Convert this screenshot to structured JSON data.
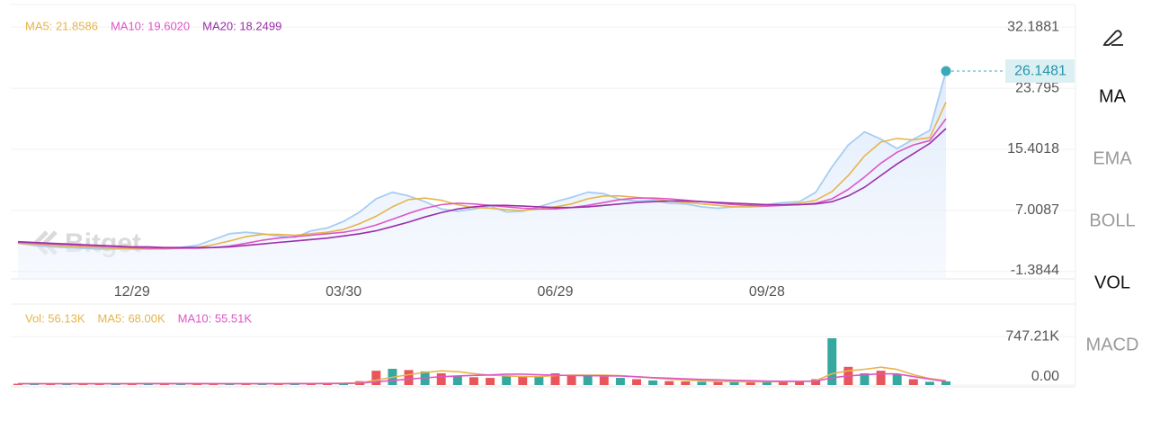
{
  "chart_data": [
    {
      "type": "line",
      "categories": [
        null,
        null,
        null,
        null,
        null,
        null,
        null,
        "12/29",
        null,
        null,
        null,
        null,
        null,
        null,
        null,
        null,
        null,
        null,
        null,
        null,
        "03/30",
        null,
        null,
        null,
        null,
        null,
        null,
        null,
        null,
        null,
        null,
        null,
        null,
        "06/29",
        null,
        null,
        null,
        null,
        null,
        null,
        null,
        null,
        null,
        null,
        null,
        null,
        "09/28",
        null,
        null,
        null,
        null,
        null,
        null,
        null,
        null,
        null,
        null,
        null
      ],
      "ylim": [
        -2.4,
        35.3
      ],
      "yticks": [
        32.1881,
        23.795,
        15.4018,
        7.0087,
        -1.3844
      ],
      "grid": true,
      "series": [
        {
          "color": "#a8cdf2",
          "area": true,
          "last_marker": true,
          "values": [
            2.5,
            2.2,
            2.0,
            1.9,
            1.8,
            1.7,
            1.7,
            1.8,
            1.7,
            1.8,
            1.9,
            2.2,
            3.0,
            3.8,
            4.0,
            3.8,
            3.5,
            3.3,
            4.2,
            4.6,
            5.5,
            6.8,
            8.6,
            9.5,
            9.0,
            8.2,
            7.2,
            6.9,
            7.2,
            7.6,
            6.8,
            6.9,
            7.5,
            8.2,
            8.8,
            9.5,
            9.3,
            8.5,
            8.3,
            8.4,
            8.0,
            7.9,
            7.5,
            7.3,
            7.5,
            7.6,
            7.8,
            8.1,
            8.2,
            9.5,
            13.0,
            16.0,
            17.8,
            16.8,
            15.5,
            16.8,
            18.0,
            26.1481
          ]
        },
        {
          "name": "MA5: 21.8586",
          "color": "#e6b54a",
          "values": [
            2.5,
            2.4,
            2.2,
            2.1,
            2.0,
            1.9,
            1.8,
            1.7,
            1.7,
            1.7,
            1.8,
            1.9,
            2.3,
            2.8,
            3.4,
            3.7,
            3.7,
            3.6,
            3.8,
            4.0,
            4.4,
            5.2,
            6.2,
            7.5,
            8.5,
            8.7,
            8.4,
            7.8,
            7.4,
            7.3,
            7.1,
            7.0,
            7.2,
            7.5,
            7.9,
            8.6,
            9.0,
            9.0,
            8.8,
            8.6,
            8.3,
            8.1,
            7.9,
            7.7,
            7.5,
            7.5,
            7.6,
            7.8,
            8.0,
            8.4,
            9.6,
            11.8,
            14.5,
            16.4,
            16.9,
            16.7,
            17.0,
            21.8586
          ]
        },
        {
          "name": "MA10: 19.6020",
          "color": "#df55c6",
          "values": [
            2.6,
            2.5,
            2.4,
            2.3,
            2.2,
            2.1,
            2.0,
            1.9,
            1.8,
            1.8,
            1.8,
            1.8,
            1.9,
            2.1,
            2.5,
            2.9,
            3.2,
            3.4,
            3.6,
            3.8,
            4.0,
            4.4,
            5.0,
            5.8,
            6.6,
            7.3,
            7.8,
            8.0,
            7.9,
            7.7,
            7.5,
            7.3,
            7.2,
            7.2,
            7.4,
            7.7,
            8.1,
            8.5,
            8.7,
            8.7,
            8.6,
            8.4,
            8.2,
            8.0,
            7.8,
            7.7,
            7.6,
            7.7,
            7.8,
            8.0,
            8.6,
            9.9,
            11.6,
            13.5,
            15.0,
            16.0,
            16.6,
            19.602
          ]
        },
        {
          "name": "MA20: 18.2499",
          "color": "#9a2fa8",
          "values": [
            2.7,
            2.6,
            2.5,
            2.4,
            2.3,
            2.2,
            2.1,
            2.0,
            2.0,
            1.9,
            1.9,
            1.9,
            1.9,
            2.0,
            2.2,
            2.4,
            2.6,
            2.8,
            3.0,
            3.2,
            3.5,
            3.8,
            4.2,
            4.8,
            5.4,
            6.1,
            6.7,
            7.2,
            7.5,
            7.7,
            7.7,
            7.6,
            7.5,
            7.4,
            7.4,
            7.5,
            7.7,
            7.9,
            8.1,
            8.2,
            8.3,
            8.3,
            8.2,
            8.1,
            8.0,
            7.9,
            7.8,
            7.8,
            7.8,
            7.9,
            8.2,
            9.0,
            10.2,
            11.8,
            13.4,
            14.8,
            16.2,
            18.2499
          ]
        }
      ]
    },
    {
      "type": "bar",
      "ylim": [
        0,
        1150000
      ],
      "yticks": [
        {
          "value": 747210,
          "label": "747.21K"
        },
        {
          "value": 0,
          "label": "0.00"
        }
      ],
      "grid": true,
      "series": [
        {
          "name": "Vol: 56.13K",
          "color": "#e6b54a",
          "colors": [
            "#e8555b",
            "#35a89f",
            "#e8555b",
            "#35a89f",
            "#e8555b",
            "#e8555b",
            "#35a89f",
            "#e8555b",
            "#35a89f",
            "#e8555b",
            "#35a89f",
            "#e8555b",
            "#e8555b",
            "#35a89f",
            "#e8555b",
            "#35a89f",
            "#e8555b",
            "#35a89f",
            "#e8555b",
            "#e8555b",
            "#35a89f",
            "#e8555b",
            "#e8555b",
            "#35a89f",
            "#e8555b",
            "#35a89f",
            "#e8555b",
            "#35a89f",
            "#e8555b",
            "#e8555b",
            "#35a89f",
            "#e8555b",
            "#35a89f",
            "#e8555b",
            "#e8555b",
            "#35a89f",
            "#e8555b",
            "#35a89f",
            "#e8555b",
            "#35a89f",
            "#e8555b",
            "#e8555b",
            "#35a89f",
            "#e8555b",
            "#35a89f",
            "#e8555b",
            "#35a89f",
            "#e8555b",
            "#e8555b",
            "#e8555b",
            "#35a89f",
            "#e8555b",
            "#35a89f",
            "#e8555b",
            "#35a89f",
            "#e8555b",
            "#35a89f",
            "#35a89f"
          ],
          "values": [
            20000,
            22000,
            21000,
            20000,
            23000,
            22000,
            21000,
            24000,
            25000,
            22000,
            20000,
            19000,
            21000,
            23000,
            22000,
            20000,
            19000,
            28000,
            30000,
            27000,
            35000,
            60000,
            220000,
            250000,
            230000,
            210000,
            180000,
            140000,
            120000,
            110000,
            150000,
            130000,
            140000,
            180000,
            160000,
            150000,
            130000,
            110000,
            90000,
            70000,
            60000,
            55000,
            50000,
            48000,
            45000,
            50000,
            55000,
            60000,
            65000,
            90000,
            720000,
            280000,
            180000,
            220000,
            160000,
            90000,
            50000,
            56130
          ]
        },
        {
          "name": "MA5: 68.00K",
          "type": "line",
          "color": "#e6b54a",
          "values": [
            21000,
            21000,
            21000,
            21000,
            21000,
            21000,
            21000,
            22000,
            23000,
            23000,
            22000,
            22000,
            21000,
            21000,
            21000,
            21000,
            21000,
            23000,
            24000,
            25000,
            28000,
            36000,
            74000,
            119000,
            159000,
            194000,
            218000,
            206000,
            176000,
            152000,
            142000,
            130000,
            130000,
            146000,
            152000,
            152000,
            152000,
            146000,
            128000,
            110000,
            92000,
            77000,
            65000,
            55000,
            52000,
            50000,
            51000,
            53000,
            55000,
            64000,
            174000,
            219000,
            243000,
            274000,
            240000,
            160000,
            100000,
            68000
          ]
        },
        {
          "name": "MA10: 55.51K",
          "type": "line",
          "color": "#df55c6",
          "values": [
            21000,
            21000,
            21000,
            21000,
            21000,
            21000,
            21000,
            21000,
            22000,
            22000,
            22000,
            22000,
            22000,
            22000,
            22000,
            22000,
            21000,
            22000,
            22000,
            23000,
            24000,
            28000,
            48000,
            70000,
            91000,
            111000,
            127000,
            140000,
            148000,
            155000,
            168000,
            168000,
            160000,
            152000,
            146000,
            144000,
            141000,
            138000,
            128000,
            114000,
            105000,
            94000,
            86000,
            79000,
            72000,
            66000,
            60000,
            58000,
            57000,
            58000,
            112000,
            142000,
            156000,
            175000,
            170000,
            130000,
            90000,
            55510
          ]
        }
      ]
    }
  ],
  "watermark": "Bitget",
  "toolbar": [
    {
      "label": "MA",
      "active": true
    },
    {
      "label": "EMA",
      "active": false
    },
    {
      "label": "BOLL",
      "active": false
    },
    {
      "label": "VOL",
      "active": true
    },
    {
      "label": "MACD",
      "active": false
    }
  ]
}
